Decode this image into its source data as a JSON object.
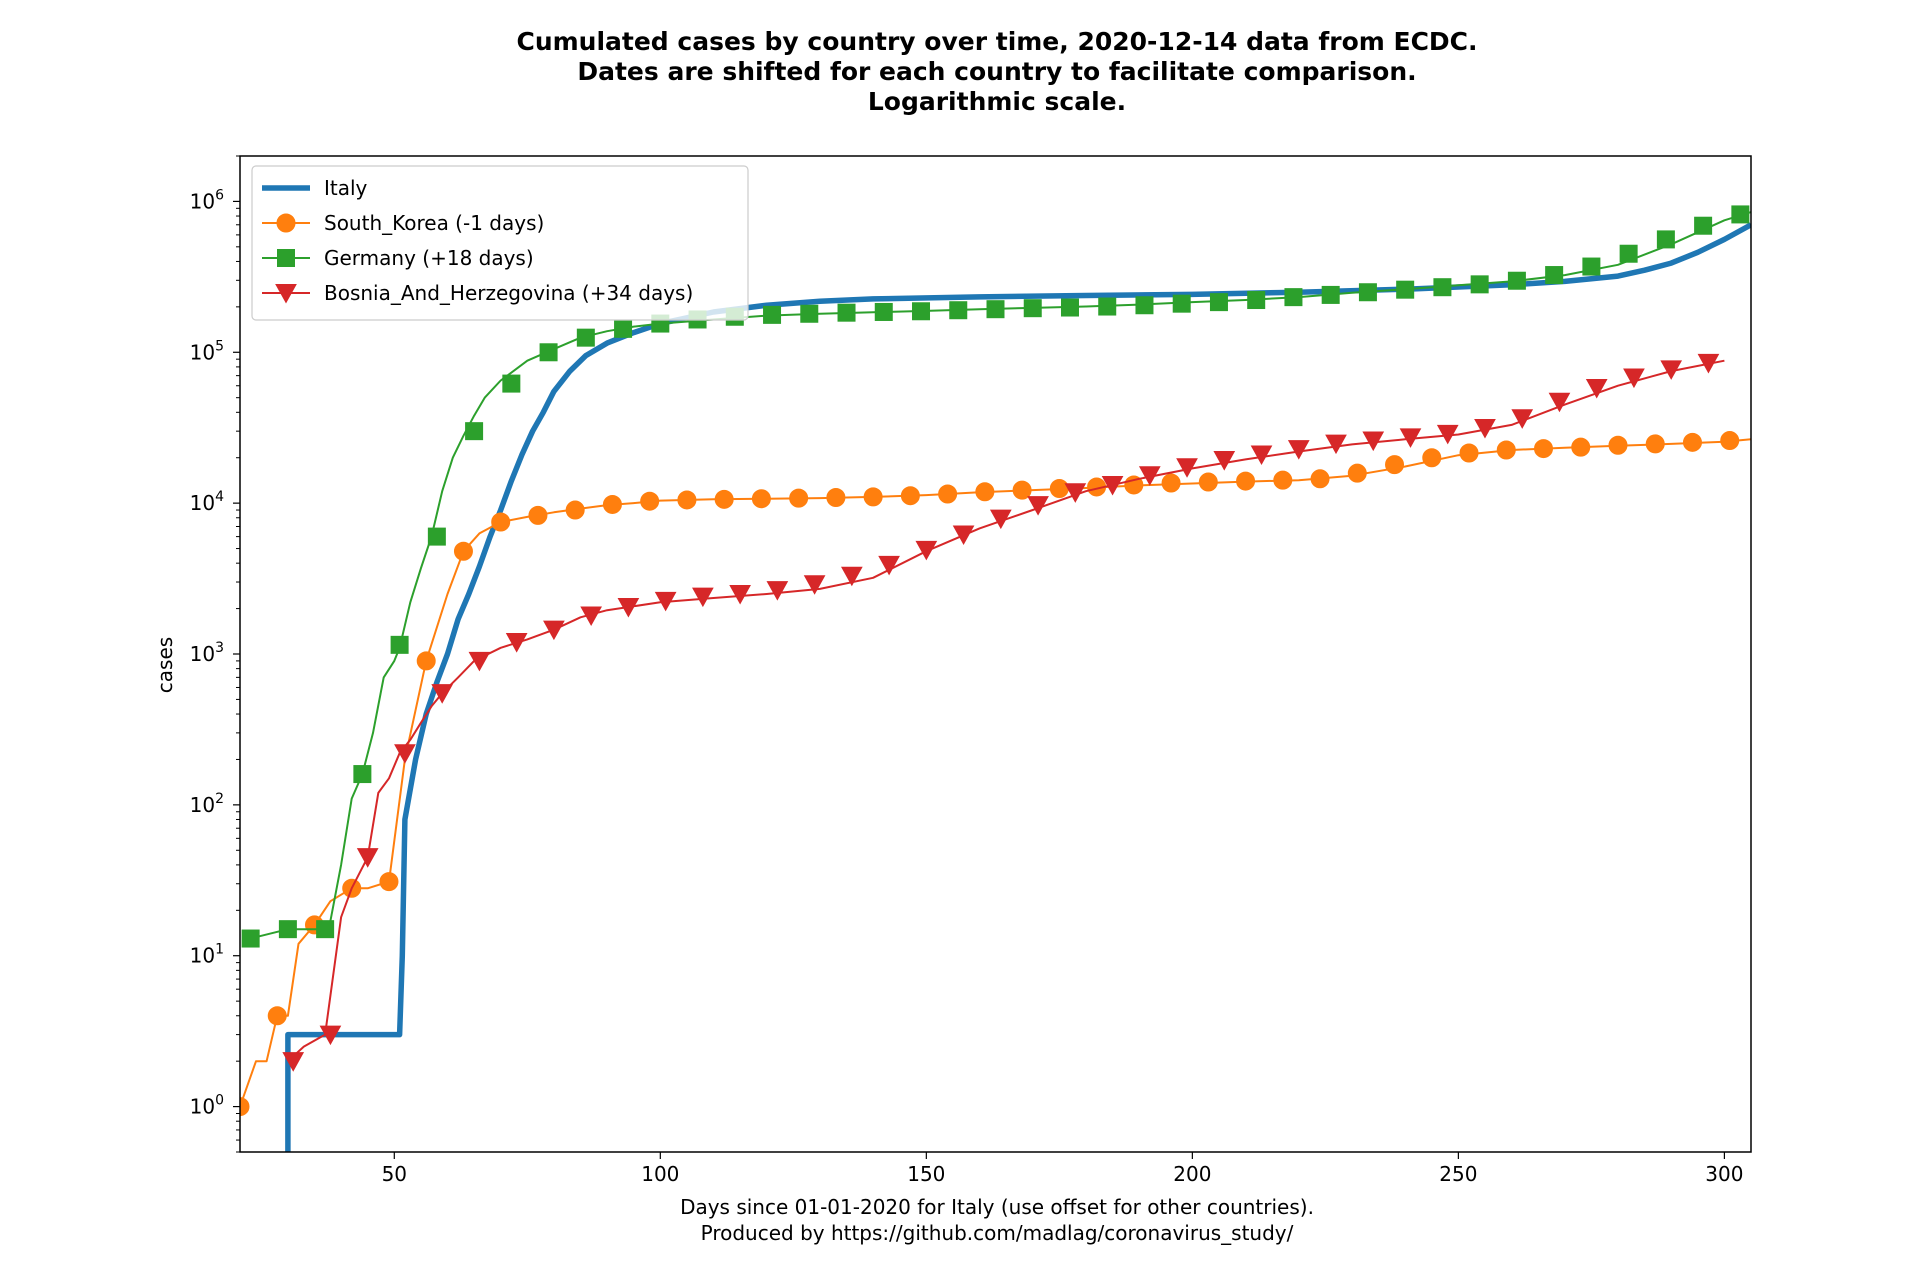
{
  "chart_data": {
    "type": "line",
    "title": [
      "Cumulated cases by country over time, 2020-12-14 data from ECDC.",
      "Dates are shifted for each country to facilitate comparison.",
      "Logarithmic scale."
    ],
    "xlabel": [
      "Days since 01-01-2020 for Italy (use offset for other countries).",
      "Produced by https://github.com/madlag/coronavirus_study/"
    ],
    "ylabel": "cases",
    "xlim": [
      21,
      305
    ],
    "ylim": [
      0.5,
      2000000
    ],
    "yscale": "log",
    "x_ticks": [
      50,
      100,
      150,
      200,
      250,
      300
    ],
    "y_ticks": [
      {
        "value": 1,
        "base": "10",
        "exp": "0"
      },
      {
        "value": 10,
        "base": "10",
        "exp": "1"
      },
      {
        "value": 100,
        "base": "10",
        "exp": "2"
      },
      {
        "value": 1000,
        "base": "10",
        "exp": "3"
      },
      {
        "value": 10000,
        "base": "10",
        "exp": "4"
      },
      {
        "value": 100000,
        "base": "10",
        "exp": "5"
      },
      {
        "value": 1000000,
        "base": "10",
        "exp": "6"
      }
    ],
    "grid": false,
    "legend_position": "top-left",
    "series": [
      {
        "name": "Italy",
        "color": "#1f77b4",
        "marker": "none",
        "line_width": "thick",
        "x": [
          30,
          30,
          30.5,
          51,
          51.5,
          52,
          54,
          56,
          58,
          60,
          62,
          64,
          66,
          68,
          70,
          72,
          74,
          76,
          78,
          80,
          83,
          86,
          90,
          95,
          100,
          110,
          120,
          130,
          140,
          160,
          180,
          200,
          220,
          240,
          260,
          270,
          280,
          285,
          290,
          295,
          300,
          305
        ],
        "y": [
          0.5,
          3,
          3,
          3,
          10,
          80,
          200,
          400,
          650,
          1000,
          1700,
          2500,
          3800,
          6000,
          9000,
          14000,
          21000,
          30000,
          40000,
          55000,
          75000,
          95000,
          115000,
          135000,
          155000,
          185000,
          205000,
          218000,
          226000,
          233000,
          238000,
          242000,
          250000,
          262000,
          280000,
          295000,
          320000,
          350000,
          390000,
          460000,
          560000,
          700000
        ]
      },
      {
        "name": "South_Korea (-1 days)",
        "color": "#ff7f0e",
        "marker": "circle",
        "x": [
          21,
          24,
          26,
          28,
          30,
          32,
          35,
          38,
          42,
          45,
          49,
          52,
          56,
          60,
          63,
          66,
          70,
          75,
          80,
          85,
          90,
          95,
          100,
          110,
          120,
          130,
          140,
          150,
          160,
          170,
          180,
          190,
          200,
          210,
          220,
          230,
          240,
          250,
          260,
          270,
          280,
          290,
          300,
          305
        ],
        "y": [
          1,
          2,
          2,
          4,
          4,
          12,
          16,
          23,
          28,
          28,
          31,
          200,
          900,
          2500,
          4800,
          6300,
          7500,
          8100,
          8700,
          9200,
          9700,
          10000,
          10400,
          10600,
          10700,
          10800,
          11000,
          11300,
          11800,
          12200,
          12600,
          13100,
          13500,
          13900,
          14200,
          15200,
          17500,
          20800,
          22500,
          23300,
          24000,
          24700,
          25500,
          26500
        ],
        "markers_x": [
          21,
          28,
          35,
          42,
          49,
          56,
          63,
          70,
          77,
          84,
          91,
          98,
          105,
          112,
          119,
          126,
          133,
          140,
          147,
          154,
          161,
          168,
          175,
          182,
          189,
          196,
          203,
          210,
          217,
          224,
          231,
          238,
          245,
          252,
          259,
          266,
          273,
          280,
          287,
          294,
          301
        ],
        "markers_y": [
          1,
          4,
          16,
          28,
          31,
          900,
          4800,
          7500,
          8300,
          9000,
          9800,
          10300,
          10500,
          10600,
          10700,
          10800,
          10900,
          11000,
          11200,
          11500,
          11900,
          12200,
          12500,
          12800,
          13200,
          13600,
          13800,
          14000,
          14200,
          14500,
          15800,
          18000,
          20000,
          21500,
          22500,
          23000,
          23500,
          24200,
          24700,
          25300,
          26000
        ]
      },
      {
        "name": "Germany (+18 days)",
        "color": "#2ca02c",
        "marker": "square",
        "x": [
          23,
          30,
          37,
          38,
          40,
          42,
          44,
          46,
          48,
          50,
          51,
          53,
          55,
          57,
          59,
          61,
          63,
          65,
          67,
          70,
          75,
          80,
          85,
          90,
          95,
          100,
          110,
          120,
          130,
          140,
          150,
          160,
          170,
          180,
          190,
          200,
          210,
          220,
          230,
          240,
          250,
          260,
          270,
          280,
          290,
          300,
          305
        ],
        "y": [
          13,
          15,
          15,
          17,
          40,
          110,
          160,
          300,
          700,
          900,
          1100,
          2200,
          3700,
          6000,
          12000,
          20000,
          28000,
          38000,
          50000,
          65000,
          88000,
          105000,
          125000,
          138000,
          148000,
          155000,
          165000,
          175000,
          180000,
          184000,
          188000,
          193000,
          197000,
          201000,
          207000,
          215000,
          222000,
          232000,
          248000,
          262000,
          278000,
          295000,
          325000,
          380000,
          520000,
          750000,
          850000
        ],
        "markers_x": [
          23,
          30,
          37,
          44,
          51,
          58,
          65,
          72,
          79,
          86,
          93,
          100,
          107,
          114,
          121,
          128,
          135,
          142,
          149,
          156,
          163,
          170,
          177,
          184,
          191,
          198,
          205,
          212,
          219,
          226,
          233,
          240,
          247,
          254,
          261,
          268,
          275,
          282,
          289,
          296,
          303
        ],
        "markers_y": [
          13,
          15,
          15,
          160,
          1150,
          6000,
          30000,
          62000,
          100000,
          125000,
          143000,
          155000,
          165000,
          172000,
          177000,
          180000,
          183000,
          185000,
          187000,
          190000,
          193000,
          196000,
          198000,
          201000,
          205000,
          210000,
          215000,
          222000,
          232000,
          240000,
          250000,
          260000,
          270000,
          282000,
          298000,
          325000,
          370000,
          450000,
          560000,
          690000,
          820000
        ]
      },
      {
        "name": "Bosnia_And_Herzegovina (+34 days)",
        "color": "#d62728",
        "marker": "triangle-down",
        "x": [
          30,
          33,
          37,
          40,
          42,
          45,
          47,
          49,
          51,
          53,
          55,
          57,
          59,
          62,
          65,
          70,
          75,
          80,
          85,
          90,
          100,
          110,
          120,
          130,
          140,
          150,
          160,
          170,
          180,
          190,
          200,
          210,
          220,
          230,
          240,
          250,
          260,
          270,
          280,
          290,
          300
        ],
        "y": [
          2,
          2.5,
          3,
          18,
          28,
          45,
          120,
          150,
          220,
          270,
          350,
          450,
          550,
          700,
          900,
          1100,
          1250,
          1450,
          1750,
          1950,
          2200,
          2350,
          2500,
          2700,
          3200,
          4800,
          6800,
          9000,
          12000,
          14500,
          17000,
          19500,
          22000,
          24500,
          26500,
          28500,
          33000,
          45000,
          60000,
          75000,
          88000
        ],
        "markers_x": [
          31,
          38,
          45,
          52,
          59,
          66,
          73,
          80,
          87,
          94,
          101,
          108,
          115,
          122,
          129,
          136,
          143,
          150,
          157,
          164,
          171,
          178,
          185,
          192,
          199,
          206,
          213,
          220,
          227,
          234,
          241,
          248,
          255,
          262,
          269,
          276,
          283,
          290,
          297
        ],
        "markers_y": [
          2,
          3,
          45,
          220,
          550,
          900,
          1200,
          1450,
          1800,
          2050,
          2250,
          2400,
          2500,
          2650,
          2900,
          3300,
          3900,
          4900,
          6200,
          7900,
          9700,
          11800,
          13200,
          15300,
          17300,
          19300,
          21000,
          22800,
          24800,
          26000,
          27300,
          28800,
          31500,
          36500,
          47000,
          58000,
          68000,
          77000,
          85000
        ]
      }
    ]
  }
}
